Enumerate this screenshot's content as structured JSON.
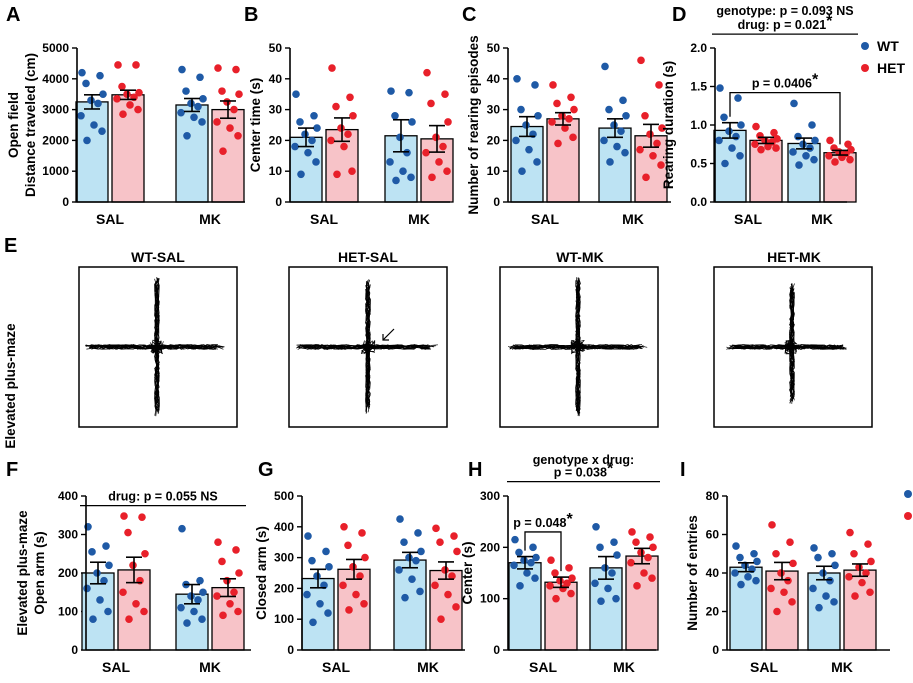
{
  "colors": {
    "wt": "#1f5aa6",
    "het": "#e8202a",
    "wt_bar": "#bde3f3",
    "het_bar": "#f7c3c8"
  },
  "legend": {
    "wt": "WT",
    "het": "HET"
  },
  "maze": {
    "panel_label": "E",
    "ylabel": "Elevated plus-maze",
    "titles": [
      "WT-SAL",
      "HET-SAL",
      "WT-MK",
      "HET-MK"
    ]
  },
  "chart_data": [
    {
      "type": "bar",
      "panel": "A",
      "ylabel_lines": [
        "Open field",
        "Distance traveled (cm)"
      ],
      "ylim": [
        0,
        5000
      ],
      "yticks": [
        0,
        1000,
        2000,
        3000,
        4000,
        5000
      ],
      "yticklabels": [
        "0",
        "1000",
        "2000",
        "3000",
        "4000",
        "5000"
      ],
      "categories": [
        "SAL",
        "MK"
      ],
      "legend": false,
      "annotations": [],
      "series": [
        {
          "name": "WT",
          "means": [
            3250,
            3150
          ],
          "sem": [
            230,
            210
          ],
          "points": [
            [
              4200,
              4100,
              3850,
              3500,
              3300,
              3200,
              2800,
              2500,
              2300,
              2000
            ],
            [
              4300,
              4050,
              3600,
              3350,
              3200,
              3100,
              2900,
              2750,
              2600,
              2150
            ]
          ]
        },
        {
          "name": "HET",
          "means": [
            3480,
            3000
          ],
          "sem": [
            150,
            280
          ],
          "points": [
            [
              4450,
              4450,
              3750,
              3550,
              3500,
              3400,
              3350,
              3150,
              3000,
              2850
            ],
            [
              4350,
              4300,
              3600,
              3500,
              3250,
              3000,
              2600,
              2400,
              2150,
              1650
            ]
          ]
        }
      ]
    },
    {
      "type": "bar",
      "panel": "B",
      "ylabel_lines": [
        "Center time (s)"
      ],
      "ylim": [
        0,
        50
      ],
      "yticks": [
        0,
        10,
        20,
        30,
        40,
        50
      ],
      "yticklabels": [
        "0",
        "10",
        "20",
        "30",
        "40",
        "50"
      ],
      "categories": [
        "SAL",
        "MK"
      ],
      "legend": false,
      "annotations": [],
      "series": [
        {
          "name": "WT",
          "means": [
            21,
            21.5
          ],
          "sem": [
            3,
            5.2
          ],
          "points": [
            [
              35,
              28,
              26,
              24,
              22,
              20,
              18,
              16,
              13,
              9
            ],
            [
              36,
              35.5,
              28,
              26,
              21,
              16,
              13,
              10,
              8,
              7
            ]
          ]
        },
        {
          "name": "HET",
          "means": [
            23.5,
            20.5
          ],
          "sem": [
            3.8,
            4.3
          ],
          "points": [
            [
              43.5,
              34,
              31,
              28,
              24,
              22,
              20,
              18,
              10,
              9
            ],
            [
              42,
              35,
              32,
              26,
              21,
              18,
              16,
              13,
              10,
              8
            ]
          ]
        }
      ]
    },
    {
      "type": "bar",
      "panel": "C",
      "ylabel_lines": [
        "Number of rearing episodes"
      ],
      "ylim": [
        0,
        50
      ],
      "yticks": [
        0,
        10,
        20,
        30,
        40,
        50
      ],
      "yticklabels": [
        "0",
        "10",
        "20",
        "30",
        "40",
        "50"
      ],
      "categories": [
        "SAL",
        "MK"
      ],
      "legend": false,
      "annotations": [],
      "series": [
        {
          "name": "WT",
          "means": [
            24.5,
            24
          ],
          "sem": [
            3.2,
            3
          ],
          "points": [
            [
              40,
              38,
              30,
              28,
              25,
              22,
              20,
              17,
              13,
              10
            ],
            [
              44,
              33,
              30,
              28,
              25,
              23,
              20,
              18,
              16,
              13
            ]
          ]
        },
        {
          "name": "HET",
          "means": [
            27,
            21.5
          ],
          "sem": [
            2,
            3.7
          ],
          "points": [
            [
              38,
              34,
              32,
              30,
              28,
              27,
              26,
              24,
              21,
              19
            ],
            [
              46,
              38,
              28,
              24,
              22,
              19,
              17,
              15,
              12,
              8
            ]
          ]
        }
      ]
    },
    {
      "type": "bar",
      "panel": "D",
      "ylabel_lines": [
        "Rearing duration (s)"
      ],
      "ylim": [
        0,
        2.0
      ],
      "yticks": [
        0,
        0.5,
        1.0,
        1.5,
        2.0
      ],
      "yticklabels": [
        "0.0",
        "0.5",
        "1.0",
        "1.5",
        "2.0"
      ],
      "categories": [
        "SAL",
        "MK"
      ],
      "legend": true,
      "annotations": [
        {
          "kind": "bracket",
          "from": [
            0,
            0
          ],
          "to": [
            1,
            1
          ],
          "text": "p = 0.0406",
          "star": "*",
          "level": 1.42
        },
        {
          "kind": "line",
          "text": "drug: p = 0.021",
          "star": "*",
          "level": 2.18
        },
        {
          "kind": "text",
          "text": "genotype: p = 0.093 NS",
          "level": 2.43
        }
      ],
      "series": [
        {
          "name": "WT",
          "means": [
            0.93,
            0.76
          ],
          "sem": [
            0.1,
            0.07
          ],
          "points": [
            [
              1.48,
              1.35,
              1.1,
              1.0,
              0.92,
              0.85,
              0.8,
              0.7,
              0.6,
              0.5
            ],
            [
              1.28,
              1.0,
              0.85,
              0.8,
              0.75,
              0.7,
              0.65,
              0.6,
              0.55,
              0.48
            ]
          ]
        },
        {
          "name": "HET",
          "means": [
            0.8,
            0.64
          ],
          "sem": [
            0.04,
            0.03
          ],
          "points": [
            [
              0.98,
              0.9,
              0.86,
              0.82,
              0.8,
              0.78,
              0.75,
              0.72,
              0.7,
              0.68
            ],
            [
              0.8,
              0.75,
              0.7,
              0.68,
              0.65,
              0.63,
              0.6,
              0.58,
              0.55,
              0.52
            ]
          ]
        }
      ]
    },
    {
      "type": "bar",
      "panel": "F",
      "ylabel_lines": [
        "Elevated plus-maze",
        "Open arm (s)"
      ],
      "ylim": [
        0,
        400
      ],
      "yticks": [
        0,
        100,
        200,
        300,
        400
      ],
      "yticklabels": [
        "0",
        "100",
        "200",
        "300",
        "400"
      ],
      "categories": [
        "SAL",
        "MK"
      ],
      "legend": false,
      "annotations": [
        {
          "kind": "line",
          "text": "drug: p = 0.055 NS",
          "star": "",
          "level": 375
        }
      ],
      "series": [
        {
          "name": "WT",
          "means": [
            200,
            145
          ],
          "sem": [
            28,
            25
          ],
          "points": [
            [
              320,
              270,
              255,
              220,
              200,
              180,
              160,
              130,
              100,
              80
            ],
            [
              315,
              180,
              170,
              150,
              140,
              130,
              110,
              100,
              80,
              70
            ]
          ]
        },
        {
          "name": "HET",
          "means": [
            208,
            162
          ],
          "sem": [
            33,
            23
          ],
          "points": [
            [
              348,
              345,
              305,
              250,
              220,
              180,
              150,
              120,
              100,
              80
            ],
            [
              280,
              260,
              230,
              200,
              180,
              150,
              140,
              120,
              100,
              90
            ]
          ]
        }
      ]
    },
    {
      "type": "bar",
      "panel": "G",
      "ylabel_lines": [
        "Closed arm (s)"
      ],
      "ylim": [
        0,
        500
      ],
      "yticks": [
        0,
        100,
        200,
        300,
        400,
        500
      ],
      "yticklabels": [
        "0",
        "100",
        "200",
        "300",
        "400",
        "500"
      ],
      "categories": [
        "SAL",
        "MK"
      ],
      "legend": false,
      "annotations": [],
      "series": [
        {
          "name": "WT",
          "means": [
            232,
            292
          ],
          "sem": [
            30,
            25
          ],
          "points": [
            [
              370,
              320,
              290,
              270,
              240,
              210,
              180,
              150,
              120,
              90
            ],
            [
              425,
              380,
              350,
              320,
              300,
              290,
              260,
              230,
              190,
              170
            ]
          ]
        },
        {
          "name": "HET",
          "means": [
            262,
            258
          ],
          "sem": [
            32,
            28
          ],
          "points": [
            [
              400,
              380,
              340,
              300,
              270,
              240,
              210,
              180,
              150,
              130
            ],
            [
              395,
              370,
              350,
              320,
              260,
              240,
              210,
              180,
              140,
              100
            ]
          ]
        }
      ]
    },
    {
      "type": "bar",
      "panel": "H",
      "ylabel_lines": [
        "Center (s)"
      ],
      "ylim": [
        0,
        300
      ],
      "yticks": [
        0,
        100,
        200,
        300
      ],
      "yticklabels": [
        "0",
        "100",
        "200",
        "300"
      ],
      "categories": [
        "SAL",
        "MK"
      ],
      "legend": false,
      "annotations": [
        {
          "kind": "bracket",
          "from": [
            0,
            0
          ],
          "to": [
            0,
            1
          ],
          "text": "p = 0.048",
          "star": "*",
          "level": 230
        },
        {
          "kind": "line",
          "text": "p = 0.038",
          "star": "*",
          "level": 328
        },
        {
          "kind": "text",
          "text": "genotype x drug:",
          "level": 362
        }
      ],
      "series": [
        {
          "name": "WT",
          "means": [
            170,
            160
          ],
          "sem": [
            12,
            22
          ],
          "points": [
            [
              215,
              200,
              190,
              180,
              175,
              170,
              165,
              150,
              140,
              125
            ],
            [
              240,
              210,
              200,
              185,
              160,
              150,
              130,
              120,
              100,
              95
            ]
          ]
        },
        {
          "name": "HET",
          "means": [
            132,
            183
          ],
          "sem": [
            10,
            15
          ],
          "points": [
            [
              175,
              160,
              150,
              140,
              135,
              130,
              125,
              120,
              110,
              100
            ],
            [
              230,
              220,
              210,
              200,
              190,
              180,
              170,
              150,
              140,
              125
            ]
          ]
        }
      ]
    },
    {
      "type": "bar",
      "panel": "I",
      "ylabel_lines": [
        "Number of entries"
      ],
      "ylim": [
        0,
        80
      ],
      "yticks": [
        0,
        20,
        40,
        60,
        80
      ],
      "yticklabels": [
        "0",
        "20",
        "40",
        "60",
        "80"
      ],
      "categories": [
        "SAL",
        "MK"
      ],
      "legend": true,
      "annotations": [],
      "series": [
        {
          "name": "WT",
          "means": [
            43,
            40
          ],
          "sem": [
            2.3,
            3.5
          ],
          "points": [
            [
              54,
              50,
              48,
              46,
              44,
              42,
              40,
              38,
              36,
              34
            ],
            [
              53,
              50,
              48,
              44,
              40,
              36,
              32,
              28,
              25,
              22
            ]
          ]
        },
        {
          "name": "HET",
          "means": [
            41,
            41.5
          ],
          "sem": [
            4.5,
            3.2
          ],
          "points": [
            [
              65,
              56,
              50,
              45,
              40,
              36,
              32,
              30,
              25,
              20
            ],
            [
              61,
              55,
              50,
              46,
              43,
              40,
              38,
              35,
              30,
              28
            ]
          ]
        }
      ]
    }
  ]
}
